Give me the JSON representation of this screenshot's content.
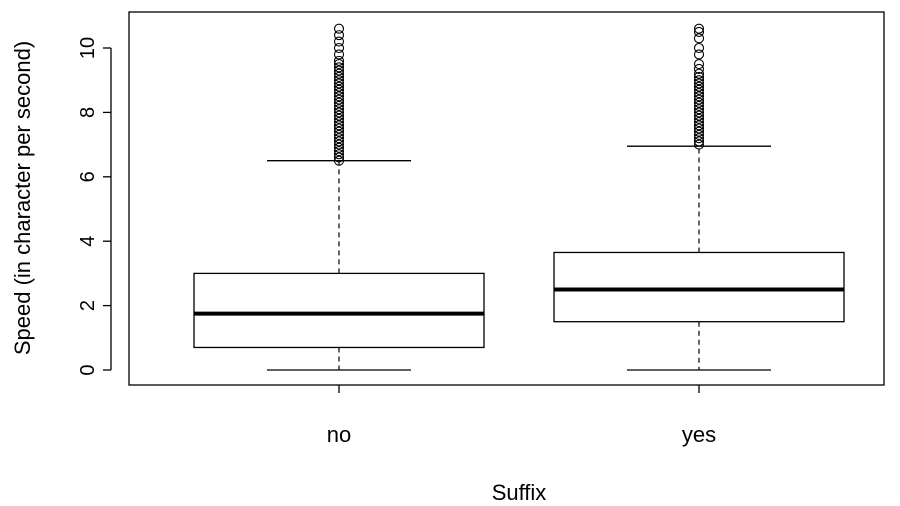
{
  "chart_data": {
    "type": "boxplot",
    "title": "",
    "xlabel": "Suffix",
    "ylabel": "Speed (in character per second)",
    "ylim": [
      -0.5,
      11
    ],
    "y_ticks": [
      0,
      2,
      4,
      6,
      8,
      10
    ],
    "y_tick_labels": [
      "0",
      "2",
      "4",
      "6",
      "8",
      "10"
    ],
    "categories": [
      "no",
      "yes"
    ],
    "boxes": [
      {
        "category": "no",
        "whisker_low": 0,
        "q1": 0.7,
        "median": 1.75,
        "q3": 3.0,
        "whisker_high": 6.5,
        "outliers": [
          6.5,
          6.6,
          6.7,
          6.8,
          6.9,
          7.0,
          7.1,
          7.2,
          7.3,
          7.4,
          7.5,
          7.6,
          7.7,
          7.8,
          7.9,
          8.0,
          8.1,
          8.2,
          8.3,
          8.4,
          8.5,
          8.6,
          8.7,
          8.8,
          8.9,
          9.0,
          9.1,
          9.2,
          9.3,
          9.4,
          9.5,
          9.6,
          9.8,
          10.0,
          10.2,
          10.4,
          10.6
        ]
      },
      {
        "category": "yes",
        "whisker_low": 0,
        "q1": 1.5,
        "median": 2.5,
        "q3": 3.65,
        "whisker_high": 6.95,
        "outliers": [
          7.0,
          7.1,
          7.2,
          7.3,
          7.4,
          7.5,
          7.6,
          7.7,
          7.8,
          7.9,
          8.0,
          8.1,
          8.2,
          8.3,
          8.4,
          8.5,
          8.6,
          8.7,
          8.8,
          8.9,
          9.0,
          9.1,
          9.2,
          9.35,
          9.5,
          9.8,
          10.0,
          10.3,
          10.5,
          10.6
        ]
      }
    ],
    "grid": false,
    "legend": "none"
  }
}
